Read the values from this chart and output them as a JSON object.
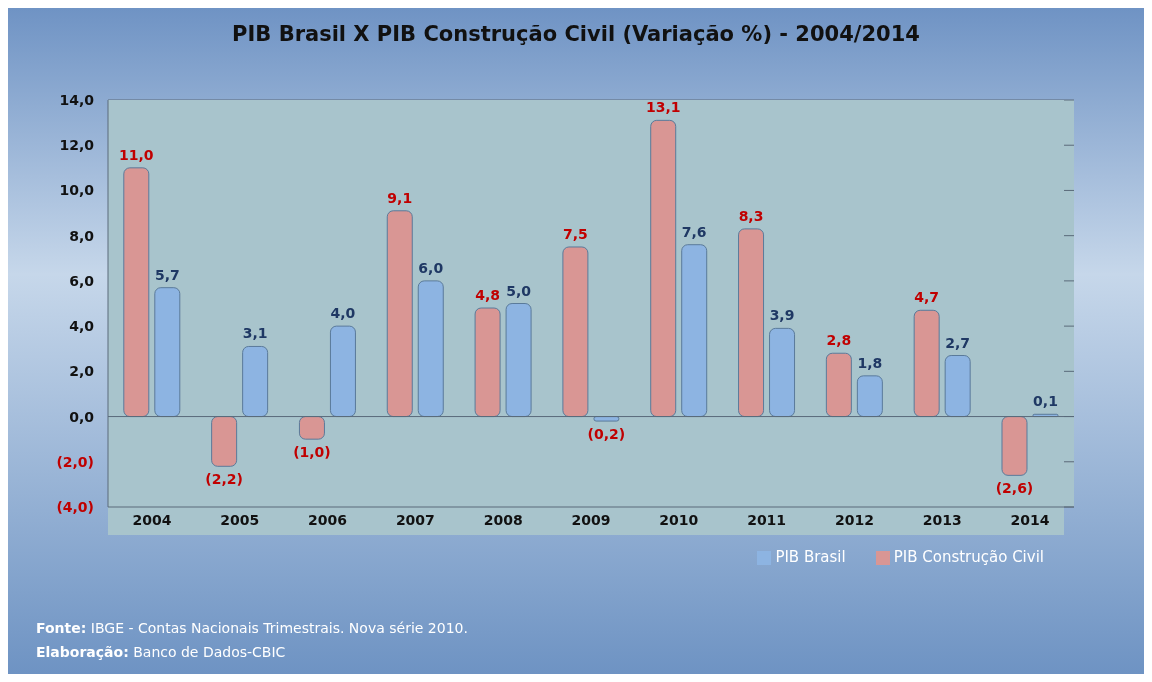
{
  "chart_data": {
    "type": "bar",
    "title": "PIB Brasil X PIB Construção Civil (Variação %) - 2004/2014",
    "categories": [
      "2004",
      "2005",
      "2006",
      "2007",
      "2008",
      "2009",
      "2010",
      "2011",
      "2012",
      "2013",
      "2014"
    ],
    "series": [
      {
        "name": "PIB Construção Civil",
        "color": "#d99694",
        "values": [
          11.0,
          -2.2,
          -1.0,
          9.1,
          4.8,
          7.5,
          13.1,
          8.3,
          2.8,
          4.7,
          -2.6
        ],
        "value_labels": [
          "11,0",
          "(2,2)",
          "(1,0)",
          "9,1",
          "4,8",
          "7,5",
          "13,1",
          "8,3",
          "2,8",
          "4,7",
          "(2,6)"
        ]
      },
      {
        "name": "PIB Brasil",
        "color": "#8db4e2",
        "values": [
          5.7,
          3.1,
          4.0,
          6.0,
          5.0,
          -0.2,
          7.6,
          3.9,
          1.8,
          2.7,
          0.1
        ],
        "value_labels": [
          "5,7",
          "3,1",
          "4,0",
          "6,0",
          "5,0",
          "(0,2)",
          "7,6",
          "3,9",
          "1,8",
          "2,7",
          "0,1"
        ]
      }
    ],
    "ylim": [
      -4,
      14
    ],
    "yticks": [
      {
        "value": -4,
        "label": "(4,0)"
      },
      {
        "value": -2,
        "label": "(2,0)"
      },
      {
        "value": 0,
        "label": "0,0"
      },
      {
        "value": 2,
        "label": "2,0"
      },
      {
        "value": 4,
        "label": "4,0"
      },
      {
        "value": 6,
        "label": "6,0"
      },
      {
        "value": 8,
        "label": "8,0"
      },
      {
        "value": 10,
        "label": "10,0"
      },
      {
        "value": 12,
        "label": "12,0"
      },
      {
        "value": 14,
        "label": "14,0"
      }
    ],
    "grid": "y",
    "legend": "bottom right",
    "annotations": [
      "Fonte: IBGE - Contas Nacionais Trimestrais. Nova série 2010.",
      "Elaboração:  Banco de Dados-CBIC"
    ]
  }
}
